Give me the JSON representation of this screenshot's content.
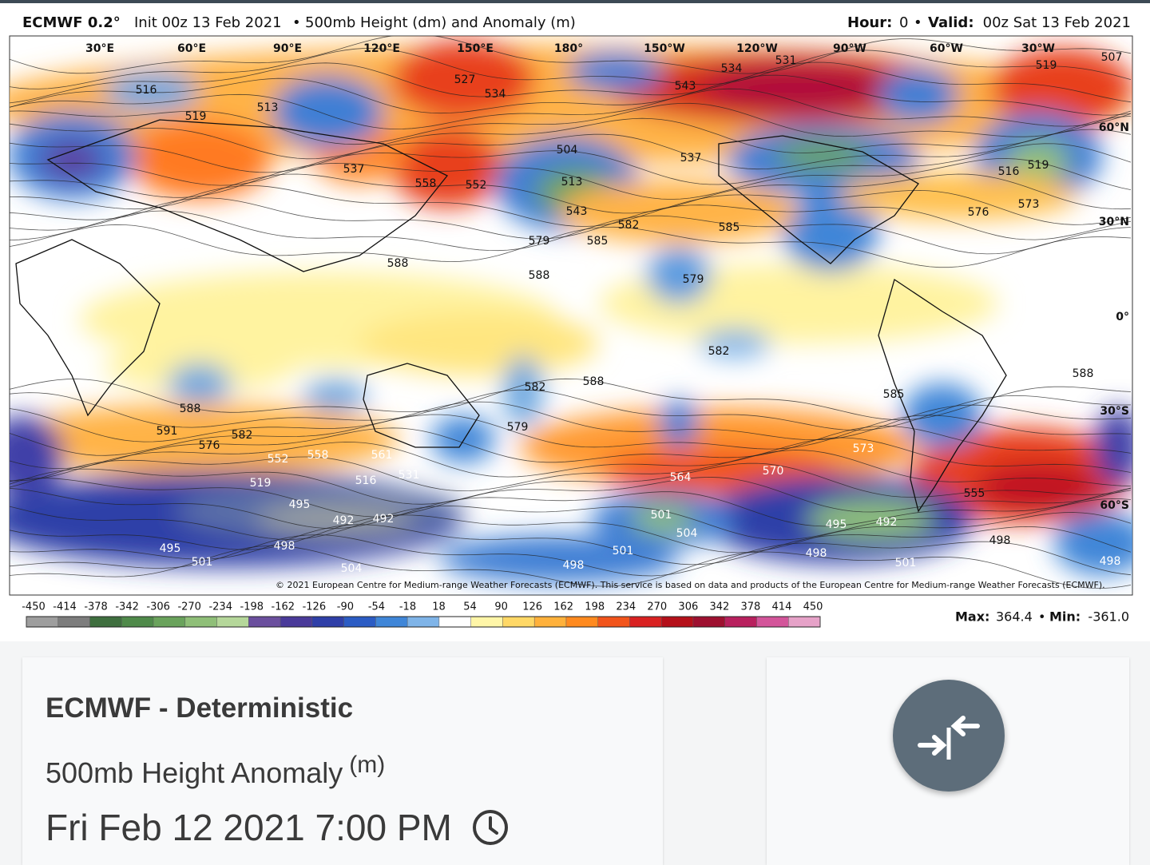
{
  "header": {
    "model": "ECMWF 0.2°",
    "init": "Init 00z 13 Feb 2021",
    "separator": "•",
    "product": "500mb Height (dm) and Anomaly (m)",
    "hour_label": "Hour:",
    "hour": "0",
    "valid_label": "Valid:",
    "valid": "00z Sat 13 Feb 2021"
  },
  "map": {
    "lon_labels": [
      "30°E",
      "60°E",
      "90°E",
      "120°E",
      "150°E",
      "180°",
      "150°W",
      "120°W",
      "90°W",
      "60°W",
      "30°W"
    ],
    "lat_labels": [
      "60°N",
      "30°N",
      "0°",
      "30°S",
      "60°S"
    ],
    "contour_labels": [
      "516",
      "513",
      "519",
      "537",
      "558",
      "552",
      "534",
      "527",
      "504",
      "513",
      "543",
      "579",
      "585",
      "582",
      "537",
      "543",
      "534",
      "531",
      "585",
      "579",
      "582",
      "588",
      "588",
      "588",
      "582",
      "579",
      "588",
      "591",
      "576",
      "582",
      "552",
      "558",
      "519",
      "495",
      "492",
      "492",
      "495",
      "501",
      "498",
      "504",
      "498",
      "501",
      "501",
      "504",
      "564",
      "570",
      "573",
      "555",
      "495",
      "492",
      "498",
      "501",
      "498",
      "498",
      "585",
      "588",
      "576",
      "573",
      "516",
      "519",
      "519",
      "507",
      "531",
      "561",
      "516"
    ],
    "copyright": "© 2021 European Centre for Medium-range Weather Forecasts (ECMWF). This service is based on data and products of the European Centre for Medium-range Weather Forecasts (ECMWF)."
  },
  "colorbar": {
    "ticks": [
      -450,
      -414,
      -378,
      -342,
      -306,
      -270,
      -234,
      -198,
      -162,
      -126,
      -90,
      -54,
      -18,
      18,
      54,
      90,
      126,
      162,
      198,
      234,
      270,
      306,
      342,
      378,
      414,
      450
    ],
    "colors": [
      "#9e9e9e",
      "#7d7d7d",
      "#3f6f3f",
      "#4f8a4a",
      "#6aa35c",
      "#8fbf78",
      "#b5d79a",
      "#6b4f9e",
      "#4a3a9a",
      "#2f3fa8",
      "#2b5cc4",
      "#3f86d8",
      "#7fb4e8",
      "#ffffff",
      "#fff6a8",
      "#ffd866",
      "#ffb13b",
      "#ff8a1f",
      "#f2541b",
      "#d92121",
      "#b5101a",
      "#9e1030",
      "#b8205e",
      "#d3559a",
      "#e6a2c8"
    ]
  },
  "stats": {
    "max_label": "Max:",
    "max": "364.4",
    "min_label": "Min:",
    "min": "-361.0"
  },
  "card": {
    "title": "ECMWF - Deterministic",
    "subtitle": "500mb Height Anomaly",
    "unit": "(m)",
    "datetime": "Fri Feb 12 2021 7:00 PM"
  }
}
